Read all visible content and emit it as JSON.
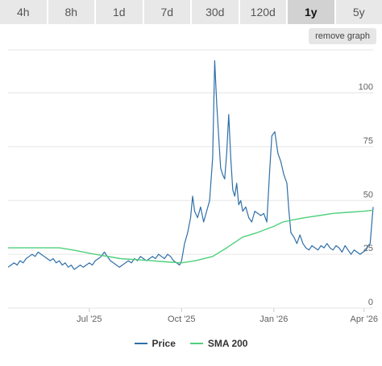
{
  "tabs": [
    {
      "label": "4h",
      "active": false
    },
    {
      "label": "8h",
      "active": false
    },
    {
      "label": "1d",
      "active": false
    },
    {
      "label": "7d",
      "active": false
    },
    {
      "label": "30d",
      "active": false
    },
    {
      "label": "120d",
      "active": false
    },
    {
      "label": "1y",
      "active": true
    },
    {
      "label": "5y",
      "active": false
    }
  ],
  "remove_button": "remove graph",
  "colors": {
    "price": "#2f6fa8",
    "sma": "#4fcf7d",
    "grid": "#e6e6e6"
  },
  "chart_data": {
    "type": "line",
    "xlabel": "",
    "ylabel": "",
    "ylim": [
      0,
      120
    ],
    "grid": true,
    "legend_placement": "bottom",
    "yticks": [
      0,
      25,
      50,
      75,
      100
    ],
    "xticks": [
      {
        "label": "Jul '25",
        "date": "2025-07-01"
      },
      {
        "label": "Oct '25",
        "date": "2025-10-01"
      },
      {
        "label": "Jan '26",
        "date": "2026-01-01"
      },
      {
        "label": "Apr '26",
        "date": "2026-04-01"
      }
    ],
    "series": [
      {
        "name": "Price",
        "points": [
          [
            "2025-04-11",
            19
          ],
          [
            "2025-04-14",
            20
          ],
          [
            "2025-04-17",
            21
          ],
          [
            "2025-04-20",
            20
          ],
          [
            "2025-04-23",
            22
          ],
          [
            "2025-04-26",
            21
          ],
          [
            "2025-04-29",
            23
          ],
          [
            "2025-05-02",
            24
          ],
          [
            "2025-05-05",
            25
          ],
          [
            "2025-05-08",
            24
          ],
          [
            "2025-05-11",
            26
          ],
          [
            "2025-05-14",
            25
          ],
          [
            "2025-05-17",
            24
          ],
          [
            "2025-05-20",
            23
          ],
          [
            "2025-05-23",
            22
          ],
          [
            "2025-05-26",
            23
          ],
          [
            "2025-05-29",
            21
          ],
          [
            "2025-06-01",
            22
          ],
          [
            "2025-06-04",
            20
          ],
          [
            "2025-06-07",
            21
          ],
          [
            "2025-06-10",
            19
          ],
          [
            "2025-06-13",
            20
          ],
          [
            "2025-06-16",
            18
          ],
          [
            "2025-06-19",
            19
          ],
          [
            "2025-06-22",
            20
          ],
          [
            "2025-06-25",
            19
          ],
          [
            "2025-06-28",
            20
          ],
          [
            "2025-07-01",
            21
          ],
          [
            "2025-07-04",
            20
          ],
          [
            "2025-07-07",
            22
          ],
          [
            "2025-07-10",
            23
          ],
          [
            "2025-07-13",
            24
          ],
          [
            "2025-07-16",
            26
          ],
          [
            "2025-07-19",
            24
          ],
          [
            "2025-07-22",
            22
          ],
          [
            "2025-07-25",
            21
          ],
          [
            "2025-07-28",
            20
          ],
          [
            "2025-07-31",
            19
          ],
          [
            "2025-08-03",
            20
          ],
          [
            "2025-08-06",
            21
          ],
          [
            "2025-08-09",
            22
          ],
          [
            "2025-08-12",
            21
          ],
          [
            "2025-08-15",
            23
          ],
          [
            "2025-08-18",
            22
          ],
          [
            "2025-08-21",
            24
          ],
          [
            "2025-08-24",
            23
          ],
          [
            "2025-08-27",
            22
          ],
          [
            "2025-08-30",
            23
          ],
          [
            "2025-09-02",
            24
          ],
          [
            "2025-09-05",
            23
          ],
          [
            "2025-09-08",
            25
          ],
          [
            "2025-09-11",
            24
          ],
          [
            "2025-09-14",
            23
          ],
          [
            "2025-09-17",
            25
          ],
          [
            "2025-09-20",
            24
          ],
          [
            "2025-09-23",
            22
          ],
          [
            "2025-09-26",
            21
          ],
          [
            "2025-09-29",
            20
          ],
          [
            "2025-10-01",
            22
          ],
          [
            "2025-10-04",
            30
          ],
          [
            "2025-10-07",
            35
          ],
          [
            "2025-10-10",
            42
          ],
          [
            "2025-10-12",
            52
          ],
          [
            "2025-10-14",
            45
          ],
          [
            "2025-10-17",
            42
          ],
          [
            "2025-10-20",
            47
          ],
          [
            "2025-10-23",
            40
          ],
          [
            "2025-10-26",
            45
          ],
          [
            "2025-10-29",
            50
          ],
          [
            "2025-11-01",
            70
          ],
          [
            "2025-11-03",
            115
          ],
          [
            "2025-11-05",
            95
          ],
          [
            "2025-11-07",
            80
          ],
          [
            "2025-11-09",
            65
          ],
          [
            "2025-11-11",
            62
          ],
          [
            "2025-11-13",
            60
          ],
          [
            "2025-11-15",
            72
          ],
          [
            "2025-11-17",
            90
          ],
          [
            "2025-11-19",
            70
          ],
          [
            "2025-11-21",
            55
          ],
          [
            "2025-11-23",
            52
          ],
          [
            "2025-11-25",
            58
          ],
          [
            "2025-11-27",
            48
          ],
          [
            "2025-11-29",
            50
          ],
          [
            "2025-12-01",
            45
          ],
          [
            "2025-12-04",
            47
          ],
          [
            "2025-12-07",
            42
          ],
          [
            "2025-12-10",
            40
          ],
          [
            "2025-12-13",
            45
          ],
          [
            "2025-12-16",
            44
          ],
          [
            "2025-12-19",
            43
          ],
          [
            "2025-12-22",
            44
          ],
          [
            "2025-12-25",
            40
          ],
          [
            "2025-12-28",
            65
          ],
          [
            "2025-12-30",
            80
          ],
          [
            "2026-01-02",
            82
          ],
          [
            "2026-01-05",
            72
          ],
          [
            "2026-01-08",
            68
          ],
          [
            "2026-01-11",
            62
          ],
          [
            "2026-01-14",
            58
          ],
          [
            "2026-01-16",
            45
          ],
          [
            "2026-01-18",
            35
          ],
          [
            "2026-01-21",
            33
          ],
          [
            "2026-01-24",
            30
          ],
          [
            "2026-01-27",
            34
          ],
          [
            "2026-01-30",
            30
          ],
          [
            "2026-02-02",
            28
          ],
          [
            "2026-02-05",
            27
          ],
          [
            "2026-02-08",
            29
          ],
          [
            "2026-02-11",
            28
          ],
          [
            "2026-02-14",
            27
          ],
          [
            "2026-02-17",
            29
          ],
          [
            "2026-02-20",
            28
          ],
          [
            "2026-02-23",
            30
          ],
          [
            "2026-02-26",
            28
          ],
          [
            "2026-03-01",
            27
          ],
          [
            "2026-03-04",
            29
          ],
          [
            "2026-03-07",
            28
          ],
          [
            "2026-03-10",
            26
          ],
          [
            "2026-03-13",
            29
          ],
          [
            "2026-03-16",
            27
          ],
          [
            "2026-03-19",
            25
          ],
          [
            "2026-03-22",
            27
          ],
          [
            "2026-03-25",
            26
          ],
          [
            "2026-03-28",
            25
          ],
          [
            "2026-03-31",
            26
          ],
          [
            "2026-04-03",
            27
          ],
          [
            "2026-04-05",
            29
          ],
          [
            "2026-04-07",
            30
          ],
          [
            "2026-04-10",
            47
          ]
        ]
      },
      {
        "name": "SMA 200",
        "points": [
          [
            "2025-04-11",
            28
          ],
          [
            "2025-05-01",
            28
          ],
          [
            "2025-06-01",
            28
          ],
          [
            "2025-06-15",
            27
          ],
          [
            "2025-07-01",
            25.5
          ],
          [
            "2025-08-01",
            23
          ],
          [
            "2025-09-01",
            22
          ],
          [
            "2025-09-15",
            21.5
          ],
          [
            "2025-10-01",
            21
          ],
          [
            "2025-10-15",
            22
          ],
          [
            "2025-11-01",
            24
          ],
          [
            "2025-11-15",
            28
          ],
          [
            "2025-12-01",
            33
          ],
          [
            "2025-12-15",
            35
          ],
          [
            "2026-01-01",
            38
          ],
          [
            "2026-01-10",
            40
          ],
          [
            "2026-01-20",
            41
          ],
          [
            "2026-02-01",
            42
          ],
          [
            "2026-02-15",
            43
          ],
          [
            "2026-03-01",
            44
          ],
          [
            "2026-03-15",
            44.5
          ],
          [
            "2026-04-01",
            45
          ],
          [
            "2026-04-10",
            45.5
          ]
        ]
      }
    ]
  }
}
